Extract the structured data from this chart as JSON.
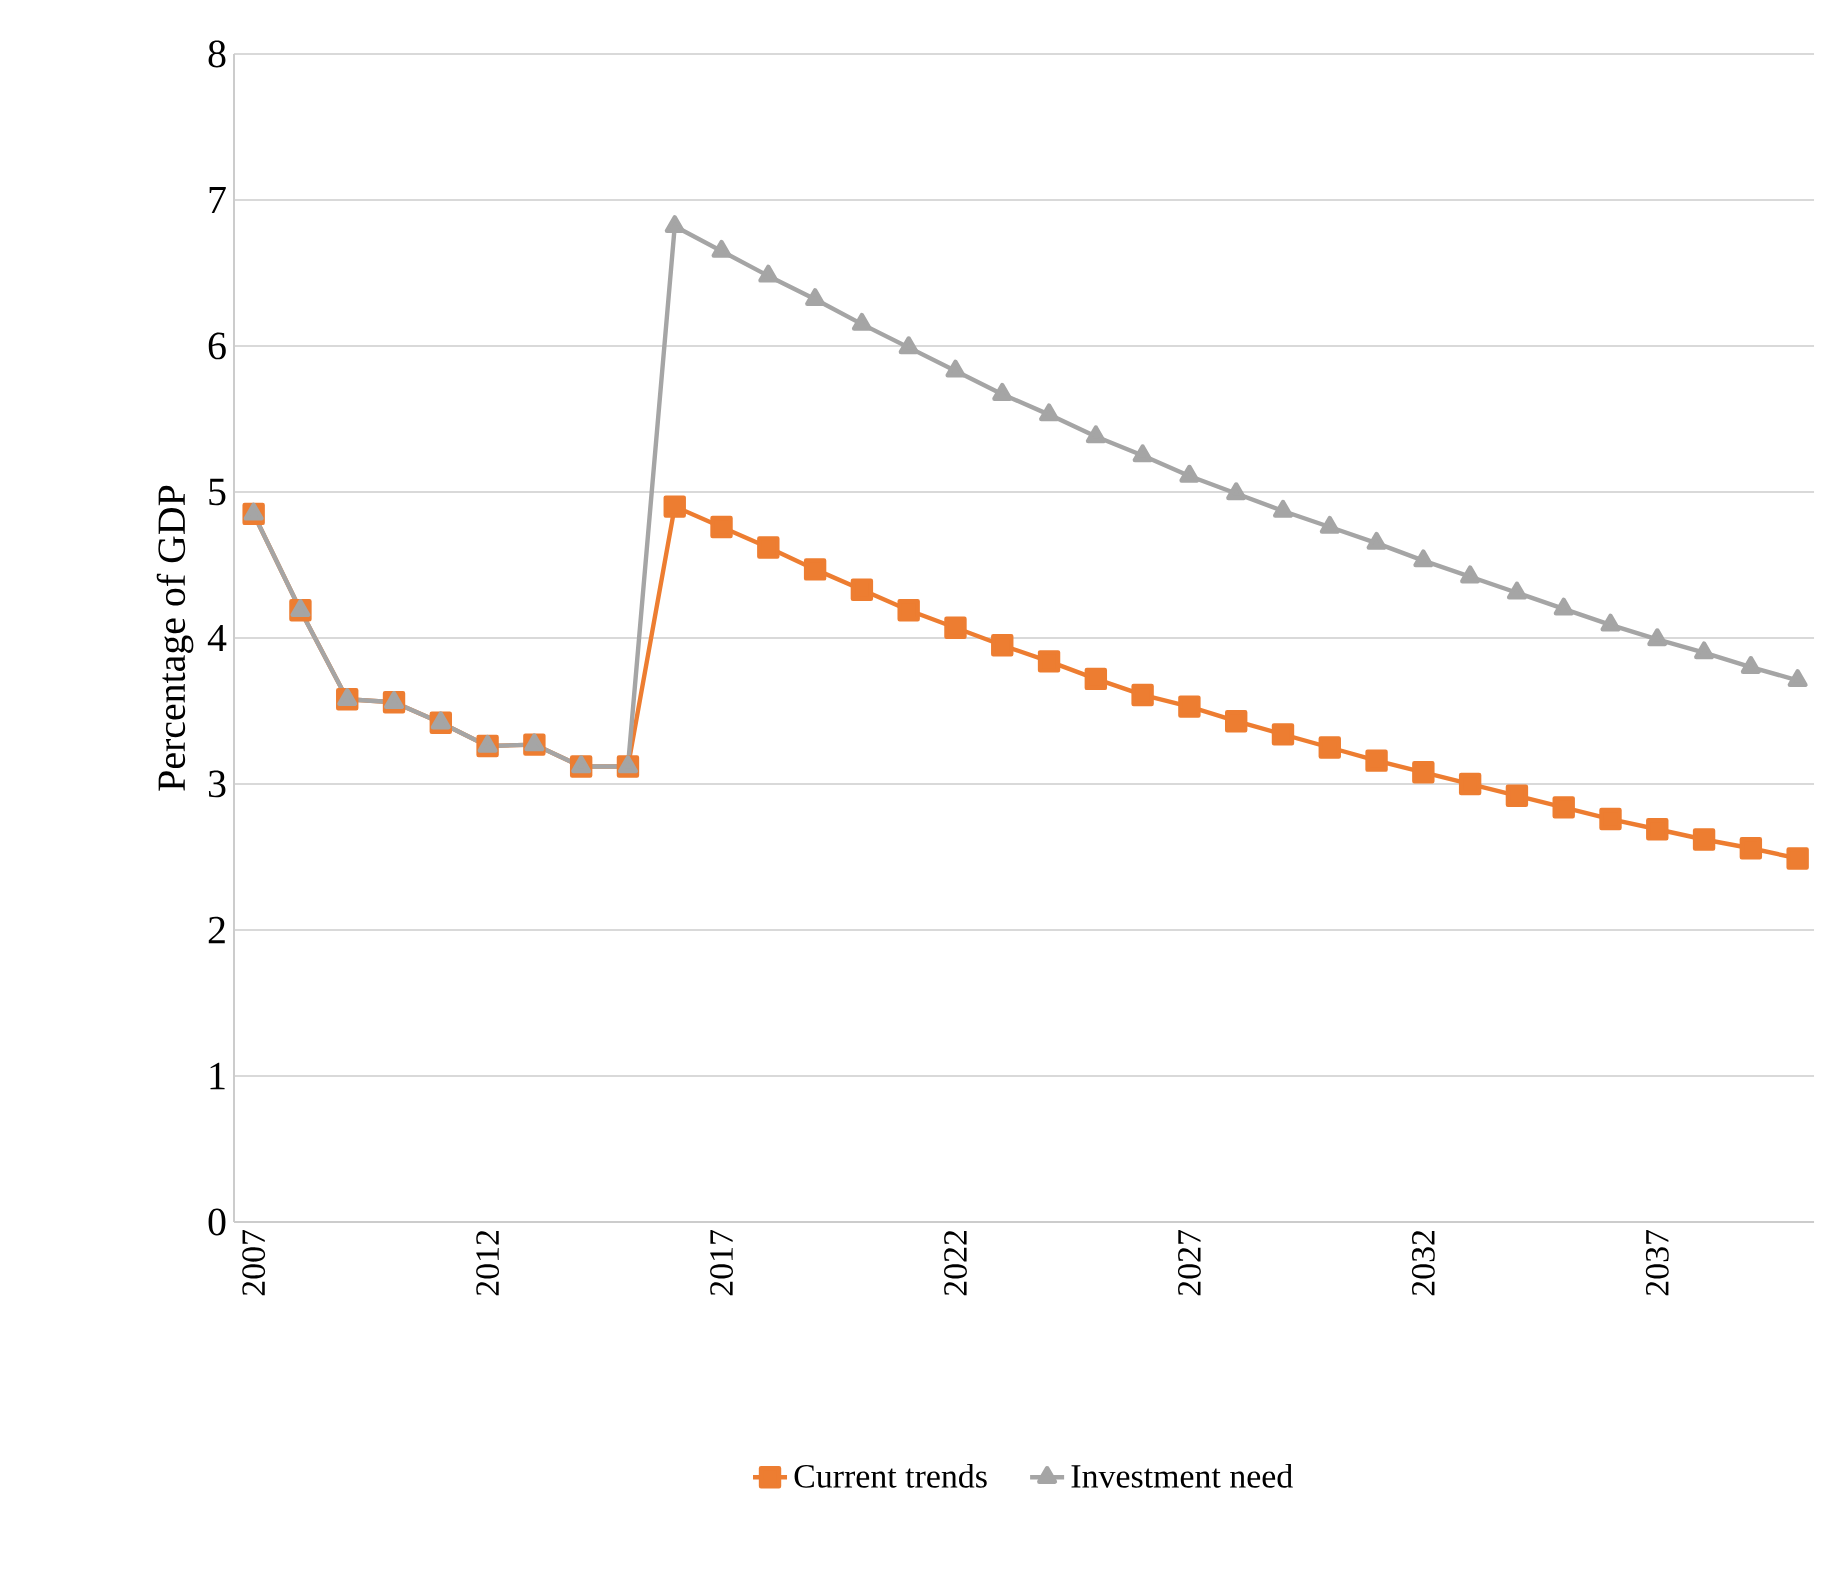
{
  "chart_data": {
    "type": "line",
    "ylabel": "Percentage of GDP",
    "categories": [
      "2007",
      null,
      null,
      null,
      null,
      "2012",
      null,
      null,
      null,
      null,
      "2017",
      null,
      null,
      null,
      null,
      "2022",
      null,
      null,
      null,
      null,
      "2027",
      null,
      null,
      null,
      null,
      "2032",
      null,
      null,
      null,
      null,
      "2037",
      null,
      null,
      null
    ],
    "ylim": [
      0,
      8
    ],
    "yticks": [
      0,
      1,
      2,
      3,
      4,
      5,
      6,
      7,
      8
    ],
    "grid": "y",
    "legend": "bottom",
    "series": [
      {
        "name": "Current trends",
        "color": "#ed7d31",
        "marker": "square",
        "values": [
          4.85,
          4.19,
          3.58,
          3.56,
          3.42,
          3.26,
          3.27,
          3.12,
          3.12,
          4.9,
          4.76,
          4.62,
          4.47,
          4.33,
          4.19,
          4.07,
          3.95,
          3.84,
          3.72,
          3.61,
          3.53,
          3.43,
          3.34,
          3.25,
          3.16,
          3.08,
          3.0,
          2.92,
          2.84,
          2.76,
          2.69,
          2.62,
          2.56,
          2.49
        ]
      },
      {
        "name": "Investment need",
        "color": "#a5a5a5",
        "marker": "triangle",
        "values": [
          4.85,
          4.19,
          3.58,
          3.56,
          3.42,
          3.26,
          3.27,
          3.12,
          3.12,
          6.82,
          6.65,
          6.48,
          6.32,
          6.15,
          5.99,
          5.83,
          5.67,
          5.53,
          5.38,
          5.25,
          5.11,
          4.99,
          4.87,
          4.76,
          4.65,
          4.53,
          4.42,
          4.31,
          4.2,
          4.09,
          3.99,
          3.9,
          3.8,
          3.71
        ]
      }
    ]
  }
}
